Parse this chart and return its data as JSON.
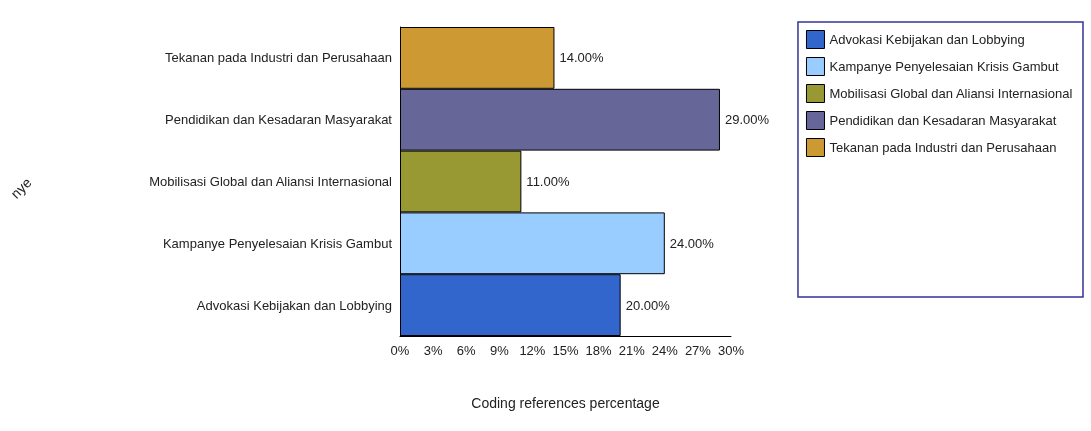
{
  "chart_data": {
    "type": "bar",
    "orientation": "horizontal",
    "xlabel": "Coding references percentage",
    "annotations": [
      "nye"
    ],
    "categories": [
      "Tekanan pada Industri dan Perusahaan",
      "Pendidikan dan Kesadaran Masyarakat",
      "Mobilisasi Global dan Aliansi Internasional",
      "Kampanye Penyelesaian Krisis Gambut",
      "Advokasi Kebijakan dan Lobbying"
    ],
    "series": [
      {
        "name": "Advokasi Kebijakan dan Lobbying",
        "color": "#3366cc",
        "values": [
          null,
          null,
          null,
          null,
          20
        ],
        "value_labels": [
          null,
          null,
          null,
          null,
          "20.00%"
        ]
      },
      {
        "name": "Kampanye Penyelesaian Krisis Gambut",
        "color": "#99ccff",
        "values": [
          null,
          null,
          null,
          24,
          null
        ],
        "value_labels": [
          null,
          null,
          null,
          "24.00%",
          null
        ]
      },
      {
        "name": "Mobilisasi Global dan Aliansi Internasional",
        "color": "#999933",
        "values": [
          null,
          null,
          11,
          null,
          null
        ],
        "value_labels": [
          null,
          null,
          "11.00%",
          null,
          null
        ]
      },
      {
        "name": "Pendidikan dan Kesadaran Masyarakat",
        "color": "#666699",
        "values": [
          null,
          29,
          null,
          null,
          null
        ],
        "value_labels": [
          null,
          "29.00%",
          null,
          null,
          null
        ]
      },
      {
        "name": "Tekanan pada Industri dan Perusahaan",
        "color": "#cc9933",
        "values": [
          14,
          null,
          null,
          null,
          null
        ],
        "value_labels": [
          "14.00%",
          null,
          null,
          null,
          null
        ]
      }
    ],
    "xlim": [
      0,
      30
    ],
    "xticks": [
      {
        "value": 0,
        "label": "0%"
      },
      {
        "value": 3,
        "label": "3%"
      },
      {
        "value": 6,
        "label": "6%"
      },
      {
        "value": 9,
        "label": "9%"
      },
      {
        "value": 12,
        "label": "12%"
      },
      {
        "value": 15,
        "label": "15%"
      },
      {
        "value": 18,
        "label": "18%"
      },
      {
        "value": 21,
        "label": "21%"
      },
      {
        "value": 24,
        "label": "24%"
      },
      {
        "value": 27,
        "label": "27%"
      },
      {
        "value": 30,
        "label": "30%"
      }
    ],
    "grid": false,
    "legend": "right"
  }
}
